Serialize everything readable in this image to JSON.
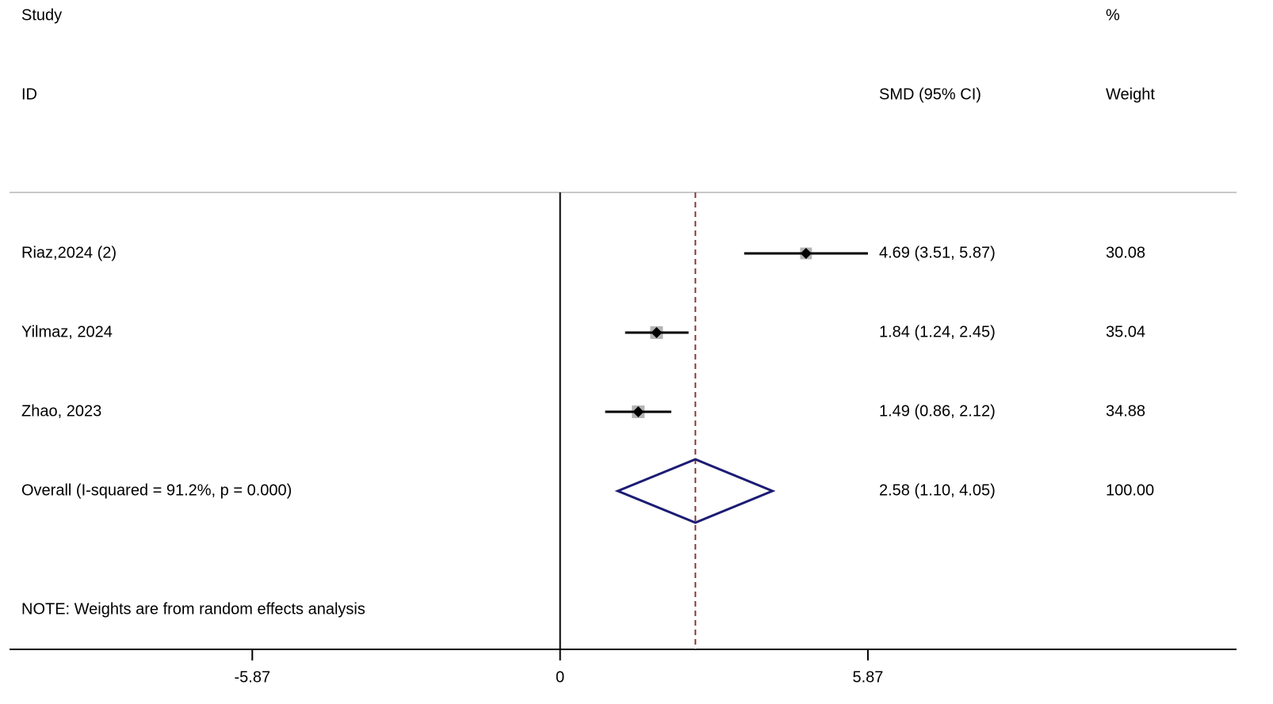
{
  "chart_data": {
    "type": "forest",
    "headers": {
      "study": "Study",
      "id": "ID",
      "effect": "SMD (95% CI)",
      "pct": "%",
      "weight": "Weight"
    },
    "categories": [
      "Riaz,2024 (2)",
      "Yilmaz, 2024",
      "Zhao, 2023"
    ],
    "values": [
      4.69,
      1.84,
      1.49
    ],
    "lower": [
      3.51,
      1.24,
      0.86
    ],
    "upper": [
      5.87,
      2.45,
      2.12
    ],
    "value_labels": [
      "4.69 (3.51, 5.87)",
      "1.84 (1.24, 2.45)",
      "1.49 (0.86, 2.12)"
    ],
    "weights": [
      30.08,
      35.04,
      34.88
    ],
    "overall": {
      "label": "Overall  (I-squared = 91.2%, p = 0.000)",
      "value": 2.58,
      "lower": 1.1,
      "upper": 4.05,
      "value_label": "2.58 (1.10, 4.05)",
      "weight": 100,
      "weight_label": "100.00"
    },
    "note": "NOTE: Weights are from random effects analysis",
    "xlim": [
      -10.5,
      12.9
    ],
    "xticks": [
      -5.87,
      0,
      5.87
    ],
    "colors": {
      "point": "#000000",
      "box": "#b4b4b4",
      "ci": "#000000",
      "diamond": "#1c1c74",
      "reference": "#8b3a3a",
      "null_line": "#000000"
    }
  }
}
